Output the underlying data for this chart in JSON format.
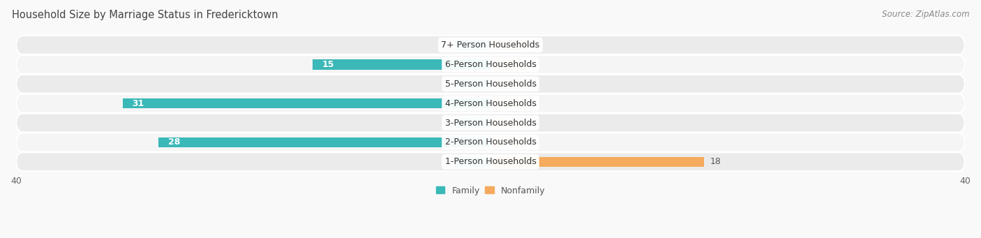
{
  "title": "Household Size by Marriage Status in Fredericktown",
  "source": "Source: ZipAtlas.com",
  "categories": [
    "7+ Person Households",
    "6-Person Households",
    "5-Person Households",
    "4-Person Households",
    "3-Person Households",
    "2-Person Households",
    "1-Person Households"
  ],
  "family_values": [
    0,
    15,
    0,
    31,
    0,
    28,
    0
  ],
  "nonfamily_values": [
    0,
    0,
    0,
    0,
    0,
    0,
    18
  ],
  "family_color": "#3bb8b8",
  "family_color_light": "#7dd4d4",
  "nonfamily_color": "#f5aa5e",
  "nonfamily_color_light": "#f5cc99",
  "xlim": [
    -40,
    40
  ],
  "bar_height": 0.52,
  "row_bg_even": "#ebebeb",
  "row_bg_odd": "#f5f5f5",
  "background_color": "#f9f9f9",
  "label_fontsize": 9.0,
  "title_fontsize": 10.5,
  "source_fontsize": 8.5,
  "stub_value": 3
}
